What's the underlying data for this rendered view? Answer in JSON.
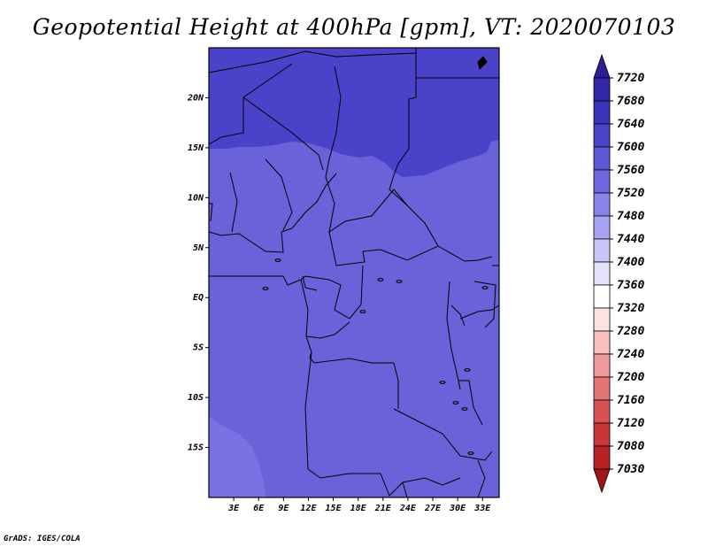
{
  "title": "Geopotential Height at 400hPa [gpm], VT: 2020070103",
  "credit": "GrADS: IGES/COLA",
  "map": {
    "projection": "latlon",
    "lon_range": [
      0,
      35
    ],
    "lat_range": [
      -20,
      25
    ],
    "lon_ticks": [
      {
        "value": 3,
        "label": "3E"
      },
      {
        "value": 6,
        "label": "6E"
      },
      {
        "value": 9,
        "label": "9E"
      },
      {
        "value": 12,
        "label": "12E"
      },
      {
        "value": 15,
        "label": "15E"
      },
      {
        "value": 18,
        "label": "18E"
      },
      {
        "value": 21,
        "label": "21E"
      },
      {
        "value": 24,
        "label": "24E"
      },
      {
        "value": 27,
        "label": "27E"
      },
      {
        "value": 30,
        "label": "30E"
      },
      {
        "value": 33,
        "label": "33E"
      }
    ],
    "lat_ticks": [
      {
        "value": 20,
        "label": "20N"
      },
      {
        "value": 15,
        "label": "15N"
      },
      {
        "value": 10,
        "label": "10N"
      },
      {
        "value": 5,
        "label": "5N"
      },
      {
        "value": 0,
        "label": "EQ"
      },
      {
        "value": -5,
        "label": "5S"
      },
      {
        "value": -10,
        "label": "10S"
      },
      {
        "value": -15,
        "label": "15S"
      }
    ]
  },
  "colorbar": {
    "levels": [
      "7720",
      "7680",
      "7640",
      "7600",
      "7560",
      "7520",
      "7480",
      "7440",
      "7400",
      "7360",
      "7320",
      "7280",
      "7240",
      "7200",
      "7160",
      "7120",
      "7080",
      "7030"
    ],
    "colors": [
      "#2a1d96",
      "#3226a8",
      "#3a33b8",
      "#4a44c8",
      "#5e58d6",
      "#6e67de",
      "#8a84ea",
      "#a8a3f2",
      "#c8c6f8",
      "#e4e3fb",
      "#ffffff",
      "#fde2e2",
      "#f8c0c0",
      "#ef9b9b",
      "#e47575",
      "#d85252",
      "#c93636",
      "#b82222",
      "#a41515"
    ],
    "top_arrow_color": "#2a1d96",
    "bottom_arrow_color": "#a41515"
  },
  "fill_colors": {
    "band_7640": "#4a42c8",
    "band_7600": "#6a62d8",
    "band_7560": "#8a82ea",
    "ocean_south": "#7a72e2"
  }
}
